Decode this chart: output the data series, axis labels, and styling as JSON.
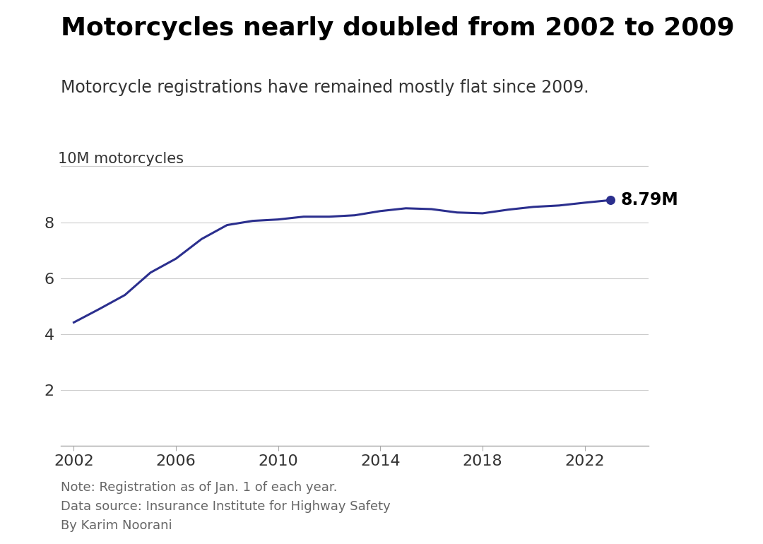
{
  "title": "Motorcycles nearly doubled from 2002 to 2009",
  "subtitle": "Motorcycle registrations have remained mostly flat since 2009.",
  "ylabel_text": "10M motorcycles",
  "note1": "Note: Registration as of Jan. 1 of each year.",
  "note2": "Data source: Insurance Institute for Highway Safety",
  "note3": "By Karim Noorani",
  "line_color": "#2b2f8e",
  "background_color": "#ffffff",
  "years": [
    2002,
    2003,
    2004,
    2005,
    2006,
    2007,
    2008,
    2009,
    2010,
    2011,
    2012,
    2013,
    2014,
    2015,
    2016,
    2017,
    2018,
    2019,
    2020,
    2021,
    2022,
    2023
  ],
  "values": [
    4.42,
    4.9,
    5.4,
    6.2,
    6.7,
    7.4,
    7.9,
    8.05,
    8.1,
    8.2,
    8.2,
    8.25,
    8.4,
    8.5,
    8.47,
    8.35,
    8.32,
    8.45,
    8.55,
    8.6,
    8.7,
    8.79
  ],
  "yticks": [
    2,
    4,
    6,
    8
  ],
  "xticks": [
    2002,
    2006,
    2010,
    2014,
    2018,
    2022
  ],
  "ylim": [
    0,
    10.5
  ],
  "xlim": [
    2001.5,
    2024.5
  ],
  "end_label": "8.79M",
  "title_fontsize": 26,
  "subtitle_fontsize": 17,
  "tick_fontsize": 16,
  "note_fontsize": 13,
  "ylabel_fontsize": 15
}
